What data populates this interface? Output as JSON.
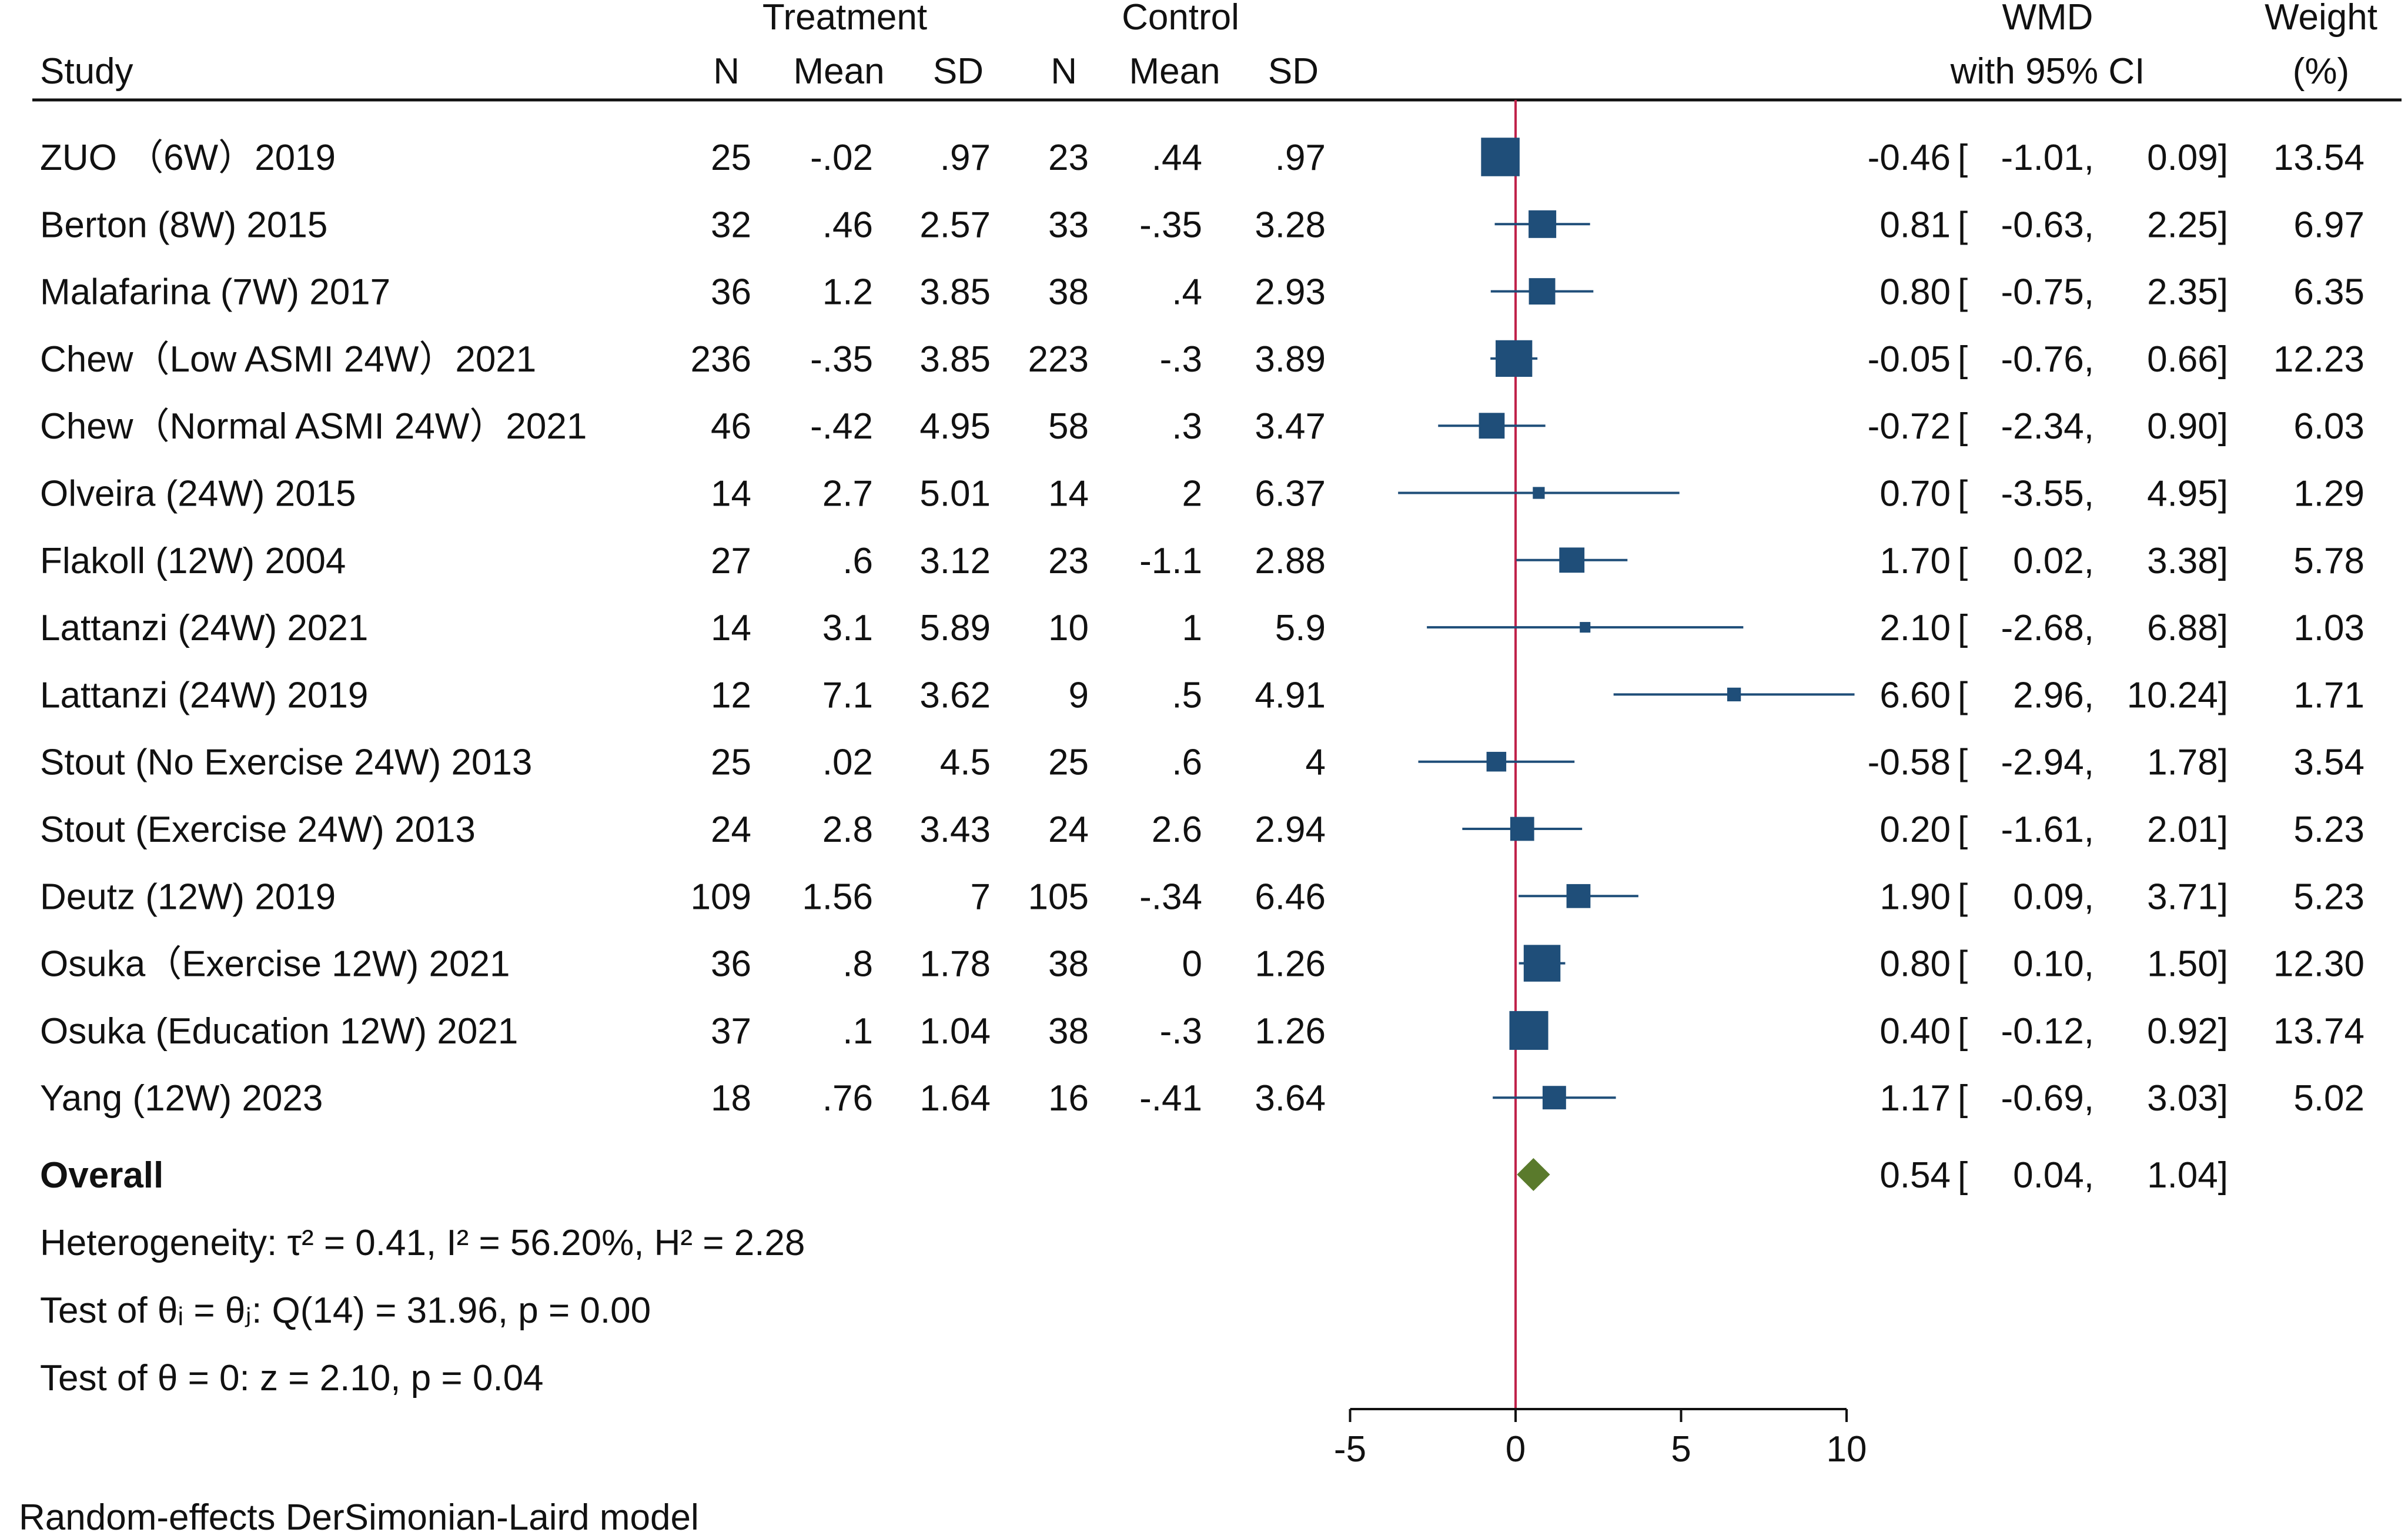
{
  "chart_data": {
    "type": "forest",
    "headers": {
      "study": "Study",
      "treatment": "Treatment",
      "control": "Control",
      "n": "N",
      "mean": "Mean",
      "sd": "SD",
      "wmd": "WMD",
      "ci": "with 95% CI",
      "weight": "Weight",
      "weight_unit": "(%)"
    },
    "studies": [
      {
        "label": "ZUO （6W）2019",
        "tn": "25",
        "tmean": "-.02",
        "tsd": ".97",
        "cn": "23",
        "cmean": ".44",
        "csd": ".97",
        "est": -0.46,
        "lo": -1.01,
        "hi": 0.09,
        "est_s": "-0.46",
        "lo_s": "-1.01,",
        "hi_s": "0.09]",
        "w": 13.54,
        "w_s": "13.54"
      },
      {
        "label": "Berton (8W) 2015",
        "tn": "32",
        "tmean": ".46",
        "tsd": "2.57",
        "cn": "33",
        "cmean": "-.35",
        "csd": "3.28",
        "est": 0.81,
        "lo": -0.63,
        "hi": 2.25,
        "est_s": "0.81",
        "lo_s": "-0.63,",
        "hi_s": "2.25]",
        "w": 6.97,
        "w_s": "6.97"
      },
      {
        "label": "Malafarina (7W) 2017",
        "tn": "36",
        "tmean": "1.2",
        "tsd": "3.85",
        "cn": "38",
        "cmean": ".4",
        "csd": "2.93",
        "est": 0.8,
        "lo": -0.75,
        "hi": 2.35,
        "est_s": "0.80",
        "lo_s": "-0.75,",
        "hi_s": "2.35]",
        "w": 6.35,
        "w_s": "6.35"
      },
      {
        "label": "Chew（Low ASMI 24W）2021",
        "tn": "236",
        "tmean": "-.35",
        "tsd": "3.85",
        "cn": "223",
        "cmean": "-.3",
        "csd": "3.89",
        "est": -0.05,
        "lo": -0.76,
        "hi": 0.66,
        "est_s": "-0.05",
        "lo_s": "-0.76,",
        "hi_s": "0.66]",
        "w": 12.23,
        "w_s": "12.23"
      },
      {
        "label": "Chew（Normal ASMI 24W）2021",
        "tn": "46",
        "tmean": "-.42",
        "tsd": "4.95",
        "cn": "58",
        "cmean": ".3",
        "csd": "3.47",
        "est": -0.72,
        "lo": -2.34,
        "hi": 0.9,
        "est_s": "-0.72",
        "lo_s": "-2.34,",
        "hi_s": "0.90]",
        "w": 6.03,
        "w_s": "6.03"
      },
      {
        "label": "Olveira (24W) 2015",
        "tn": "14",
        "tmean": "2.7",
        "tsd": "5.01",
        "cn": "14",
        "cmean": "2",
        "csd": "6.37",
        "est": 0.7,
        "lo": -3.55,
        "hi": 4.95,
        "est_s": "0.70",
        "lo_s": "-3.55,",
        "hi_s": "4.95]",
        "w": 1.29,
        "w_s": "1.29"
      },
      {
        "label": "Flakoll (12W) 2004",
        "tn": "27",
        "tmean": ".6",
        "tsd": "3.12",
        "cn": "23",
        "cmean": "-1.1",
        "csd": "2.88",
        "est": 1.7,
        "lo": 0.02,
        "hi": 3.38,
        "est_s": "1.70",
        "lo_s": "0.02,",
        "hi_s": "3.38]",
        "w": 5.78,
        "w_s": "5.78"
      },
      {
        "label": "Lattanzi (24W) 2021",
        "tn": "14",
        "tmean": "3.1",
        "tsd": "5.89",
        "cn": "10",
        "cmean": "1",
        "csd": "5.9",
        "est": 2.1,
        "lo": -2.68,
        "hi": 6.88,
        "est_s": "2.10",
        "lo_s": "-2.68,",
        "hi_s": "6.88]",
        "w": 1.03,
        "w_s": "1.03"
      },
      {
        "label": "Lattanzi (24W) 2019",
        "tn": "12",
        "tmean": "7.1",
        "tsd": "3.62",
        "cn": "9",
        "cmean": ".5",
        "csd": "4.91",
        "est": 6.6,
        "lo": 2.96,
        "hi": 10.24,
        "est_s": "6.60",
        "lo_s": "2.96,",
        "hi_s": "10.24]",
        "w": 1.71,
        "w_s": "1.71"
      },
      {
        "label": "Stout (No Exercise 24W) 2013",
        "tn": "25",
        "tmean": ".02",
        "tsd": "4.5",
        "cn": "25",
        "cmean": ".6",
        "csd": "4",
        "est": -0.58,
        "lo": -2.94,
        "hi": 1.78,
        "est_s": "-0.58",
        "lo_s": "-2.94,",
        "hi_s": "1.78]",
        "w": 3.54,
        "w_s": "3.54"
      },
      {
        "label": "Stout (Exercise 24W) 2013",
        "tn": "24",
        "tmean": "2.8",
        "tsd": "3.43",
        "cn": "24",
        "cmean": "2.6",
        "csd": "2.94",
        "est": 0.2,
        "lo": -1.61,
        "hi": 2.01,
        "est_s": "0.20",
        "lo_s": "-1.61,",
        "hi_s": "2.01]",
        "w": 5.23,
        "w_s": "5.23"
      },
      {
        "label": "Deutz (12W) 2019",
        "tn": "109",
        "tmean": "1.56",
        "tsd": "7",
        "cn": "105",
        "cmean": "-.34",
        "csd": "6.46",
        "est": 1.9,
        "lo": 0.09,
        "hi": 3.71,
        "est_s": "1.90",
        "lo_s": "0.09,",
        "hi_s": "3.71]",
        "w": 5.23,
        "w_s": "5.23"
      },
      {
        "label": "Osuka（Exercise 12W) 2021",
        "tn": "36",
        "tmean": ".8",
        "tsd": "1.78",
        "cn": "38",
        "cmean": "0",
        "csd": "1.26",
        "est": 0.8,
        "lo": 0.1,
        "hi": 1.5,
        "est_s": "0.80",
        "lo_s": "0.10,",
        "hi_s": "1.50]",
        "w": 12.3,
        "w_s": "12.30"
      },
      {
        "label": "Osuka (Education 12W) 2021",
        "tn": "37",
        "tmean": ".1",
        "tsd": "1.04",
        "cn": "38",
        "cmean": "-.3",
        "csd": "1.26",
        "est": 0.4,
        "lo": -0.12,
        "hi": 0.92,
        "est_s": "0.40",
        "lo_s": "-0.12,",
        "hi_s": "0.92]",
        "w": 13.74,
        "w_s": "13.74"
      },
      {
        "label": "Yang (12W) 2023",
        "tn": "18",
        "tmean": ".76",
        "tsd": "1.64",
        "cn": "16",
        "cmean": "-.41",
        "csd": "3.64",
        "est": 1.17,
        "lo": -0.69,
        "hi": 3.03,
        "est_s": "1.17",
        "lo_s": "-0.69,",
        "hi_s": "3.03]",
        "w": 5.02,
        "w_s": "5.02"
      }
    ],
    "overall": {
      "label": "Overall",
      "est": 0.54,
      "lo": 0.04,
      "hi": 1.04,
      "est_s": "0.54",
      "lo_s": "0.04,",
      "hi_s": "1.04]"
    },
    "stats": {
      "heterogeneity": "Heterogeneity: τ² = 0.41, I² = 56.20%, H² = 2.28",
      "test_theta_i": "Test of θᵢ = θⱼ: Q(14) = 31.96, p = 0.00",
      "test_theta_0": "Test of θ = 0: z = 2.10, p = 0.04"
    },
    "xaxis": {
      "ticks": [
        -5,
        0,
        5,
        10
      ],
      "tick_labels": [
        "-5",
        "0",
        "5",
        "10"
      ],
      "range": [
        -5,
        10
      ],
      "null_line": 0
    },
    "footnote": "Random-effects DerSimonian-Laird model"
  },
  "colors": {
    "marker": "#1f4e79",
    "diamond": "#5a7a2c",
    "null_line": "#c0234b",
    "text": "#111111",
    "rule": "#111111"
  }
}
